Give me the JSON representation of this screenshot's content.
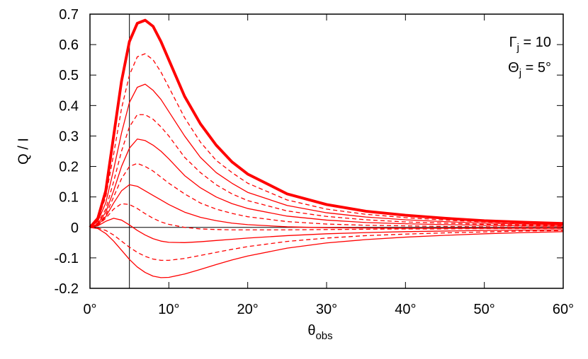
{
  "chart_data": {
    "type": "line",
    "y_label": "Q / I",
    "x_label": {
      "symbol": "θ",
      "subscript": "obs"
    },
    "annotations": [
      {
        "symbol": "Γ",
        "subscript": "j",
        "text": " = 10"
      },
      {
        "symbol": "Θ",
        "subscript": "j",
        "text": " = 5°"
      }
    ],
    "reference_lines": {
      "x": 5,
      "y": 0,
      "color": "#000000"
    },
    "x": [
      0,
      1,
      2,
      3,
      4,
      5,
      6,
      7,
      8,
      9,
      10,
      12,
      14,
      16,
      18,
      20,
      25,
      30,
      35,
      40,
      45,
      50,
      55,
      60
    ],
    "series": [
      {
        "color": "#ff0000",
        "width": 3,
        "dashed": false,
        "values": [
          0,
          0.03,
          0.12,
          0.3,
          0.48,
          0.61,
          0.67,
          0.68,
          0.66,
          0.61,
          0.55,
          0.43,
          0.34,
          0.27,
          0.215,
          0.175,
          0.11,
          0.075,
          0.053,
          0.04,
          0.03,
          0.022,
          0.017,
          0.013
        ]
      },
      {
        "color": "#ff0000",
        "width": 1,
        "dashed": true,
        "values": [
          0,
          0.025,
          0.1,
          0.24,
          0.39,
          0.5,
          0.56,
          0.57,
          0.55,
          0.51,
          0.46,
          0.36,
          0.28,
          0.22,
          0.18,
          0.145,
          0.09,
          0.06,
          0.043,
          0.032,
          0.024,
          0.018,
          0.014,
          0.011
        ]
      },
      {
        "color": "#ff0000",
        "width": 1,
        "dashed": false,
        "values": [
          0,
          0.02,
          0.08,
          0.19,
          0.31,
          0.41,
          0.46,
          0.47,
          0.45,
          0.42,
          0.38,
          0.3,
          0.23,
          0.18,
          0.145,
          0.115,
          0.072,
          0.048,
          0.034,
          0.025,
          0.019,
          0.014,
          0.011,
          0.008
        ]
      },
      {
        "color": "#ff0000",
        "width": 1,
        "dashed": true,
        "values": [
          0,
          0.015,
          0.06,
          0.15,
          0.25,
          0.33,
          0.37,
          0.37,
          0.355,
          0.33,
          0.3,
          0.23,
          0.18,
          0.14,
          0.11,
          0.088,
          0.054,
          0.036,
          0.025,
          0.018,
          0.014,
          0.01,
          0.008,
          0.006
        ]
      },
      {
        "color": "#ff0000",
        "width": 1,
        "dashed": false,
        "values": [
          0,
          0.012,
          0.05,
          0.12,
          0.2,
          0.26,
          0.29,
          0.285,
          0.27,
          0.25,
          0.225,
          0.17,
          0.13,
          0.1,
          0.078,
          0.062,
          0.037,
          0.024,
          0.016,
          0.012,
          0.009,
          0.007,
          0.005,
          0.004
        ]
      },
      {
        "color": "#ff0000",
        "width": 1,
        "dashed": true,
        "values": [
          0,
          0.01,
          0.04,
          0.1,
          0.16,
          0.2,
          0.21,
          0.2,
          0.185,
          0.165,
          0.145,
          0.11,
          0.08,
          0.06,
          0.046,
          0.035,
          0.019,
          0.011,
          0.007,
          0.005,
          0.003,
          0.002,
          0.001,
          0.001
        ]
      },
      {
        "color": "#ff0000",
        "width": 1,
        "dashed": false,
        "values": [
          0,
          0.008,
          0.035,
          0.08,
          0.12,
          0.14,
          0.135,
          0.12,
          0.105,
          0.09,
          0.075,
          0.05,
          0.033,
          0.022,
          0.014,
          0.009,
          0.002,
          -0.001,
          -0.002,
          -0.003,
          -0.003,
          -0.003,
          -0.003,
          -0.003
        ]
      },
      {
        "color": "#ff0000",
        "width": 1,
        "dashed": true,
        "values": [
          0,
          0.006,
          0.03,
          0.06,
          0.078,
          0.075,
          0.062,
          0.045,
          0.03,
          0.018,
          0.01,
          0.0,
          -0.005,
          -0.007,
          -0.008,
          -0.008,
          -0.008,
          -0.007,
          -0.006,
          -0.005,
          -0.005,
          -0.004,
          -0.004,
          -0.003
        ]
      },
      {
        "color": "#ff0000",
        "width": 1,
        "dashed": false,
        "values": [
          0,
          0.005,
          0.02,
          0.03,
          0.024,
          0.008,
          -0.01,
          -0.025,
          -0.037,
          -0.045,
          -0.049,
          -0.05,
          -0.047,
          -0.043,
          -0.039,
          -0.035,
          -0.027,
          -0.021,
          -0.017,
          -0.014,
          -0.012,
          -0.01,
          -0.009,
          -0.008
        ]
      },
      {
        "color": "#ff0000",
        "width": 1,
        "dashed": true,
        "values": [
          0,
          -0.002,
          -0.01,
          -0.025,
          -0.045,
          -0.065,
          -0.082,
          -0.095,
          -0.104,
          -0.108,
          -0.108,
          -0.102,
          -0.092,
          -0.082,
          -0.072,
          -0.063,
          -0.046,
          -0.035,
          -0.027,
          -0.022,
          -0.018,
          -0.015,
          -0.012,
          -0.01
        ]
      },
      {
        "color": "#ff0000",
        "width": 1,
        "dashed": false,
        "values": [
          0,
          -0.004,
          -0.02,
          -0.045,
          -0.075,
          -0.105,
          -0.13,
          -0.148,
          -0.16,
          -0.165,
          -0.164,
          -0.153,
          -0.138,
          -0.122,
          -0.107,
          -0.094,
          -0.068,
          -0.051,
          -0.04,
          -0.032,
          -0.026,
          -0.021,
          -0.017,
          -0.014
        ]
      }
    ],
    "xlim": [
      0,
      60
    ],
    "xticks": [
      {
        "value": 0,
        "label": "0°"
      },
      {
        "value": 10,
        "label": "10°"
      },
      {
        "value": 20,
        "label": "20°"
      },
      {
        "value": 30,
        "label": "30°"
      },
      {
        "value": 40,
        "label": "40°"
      },
      {
        "value": 50,
        "label": "50°"
      },
      {
        "value": 60,
        "label": "60°"
      }
    ],
    "ylim": [
      -0.2,
      0.7
    ],
    "yticks": [
      -0.2,
      -0.1,
      0,
      0.1,
      0.2,
      0.3,
      0.4,
      0.5,
      0.6,
      0.7
    ],
    "grid": false
  }
}
